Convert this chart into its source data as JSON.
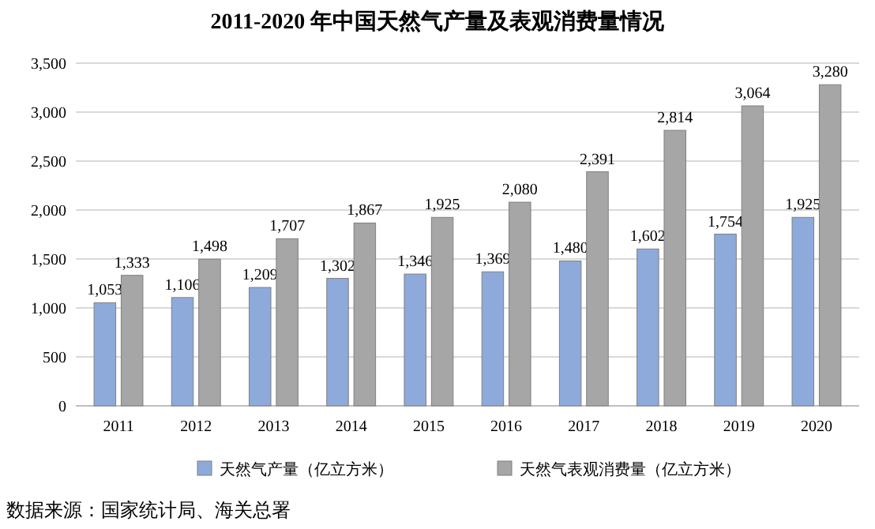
{
  "chart_data": {
    "type": "bar",
    "title": "2011-2020 年中国天然气产量及表观消费量情况",
    "categories": [
      "2011",
      "2012",
      "2013",
      "2014",
      "2015",
      "2016",
      "2017",
      "2018",
      "2019",
      "2020"
    ],
    "series": [
      {
        "name": "天然气产量（亿立方米）",
        "color": "#8eaadb",
        "values": [
          1053,
          1106,
          1209,
          1302,
          1346,
          1369,
          1480,
          1602,
          1754,
          1925
        ],
        "value_labels": [
          "1,053",
          "1,106",
          "1,209",
          "1,302",
          "1,346",
          "1,369",
          "1,480",
          "1,602",
          "1,754",
          "1,925"
        ]
      },
      {
        "name": "天然气表观消费量（亿立方米）",
        "color": "#a6a6a6",
        "values": [
          1333,
          1498,
          1707,
          1867,
          1925,
          2080,
          2391,
          2814,
          3064,
          3280
        ],
        "value_labels": [
          "1,333",
          "1,498",
          "1,707",
          "1,867",
          "1,925",
          "2,080",
          "2,391",
          "2,814",
          "3,064",
          "3,280"
        ]
      }
    ],
    "ylim": [
      0,
      3500
    ],
    "yticks": [
      0,
      {
        "value": 500,
        "label": "500"
      },
      {
        "value": 1000,
        "label": "1,000"
      },
      {
        "value": 1500,
        "label": "1,500"
      },
      {
        "value": 2000,
        "label": "2,000"
      },
      {
        "value": 2500,
        "label": "2,500"
      },
      {
        "value": 3000,
        "label": "3,000"
      },
      {
        "value": 3500,
        "label": "3,500"
      }
    ],
    "grid": "y",
    "legend": "bottom",
    "annotations": [
      "数据来源：国家统计局、海关总署"
    ]
  }
}
